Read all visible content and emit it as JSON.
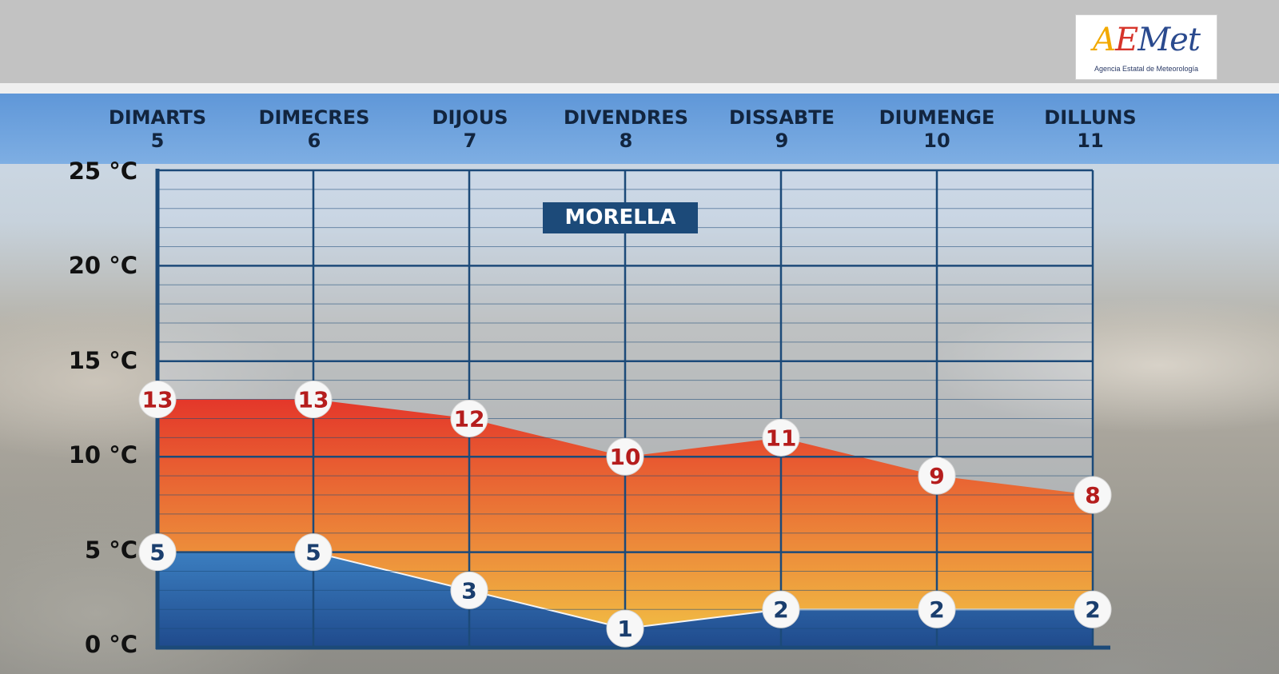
{
  "brand": {
    "logo_text": "AEMet",
    "logo_subtitle": "Agencia Estatal de Meteorología"
  },
  "station": "MORELLA",
  "days": [
    {
      "name": "DIMARTS",
      "date": "5"
    },
    {
      "name": "DIMECRES",
      "date": "6"
    },
    {
      "name": "DIJOUS",
      "date": "7"
    },
    {
      "name": "DIVENDRES",
      "date": "8"
    },
    {
      "name": "DISSABTE",
      "date": "9"
    },
    {
      "name": "DIUMENGE",
      "date": "10"
    },
    {
      "name": "DILLUNS",
      "date": "11"
    }
  ],
  "y_ticks": [
    "25 °C",
    "20 °C",
    "15 °C",
    "10 °C",
    "5 °C",
    "0 °C"
  ],
  "colors": {
    "max_top": "#e4372a",
    "max_bottom": "#f2c445",
    "min_top": "#3b7ec0",
    "min_bottom": "#1f4a8c",
    "grid": "#1c4a79",
    "max_label": "#b51d1d",
    "min_label": "#1a3e6e"
  },
  "chart_data": {
    "type": "area",
    "categories": [
      "DIMARTS 5",
      "DIMECRES 6",
      "DIJOUS 7",
      "DIVENDRES 8",
      "DISSABTE 9",
      "DIUMENGE 10",
      "DILLUNS 11"
    ],
    "series": [
      {
        "values": [
          13,
          13,
          12,
          10,
          11,
          9,
          8
        ]
      },
      {
        "values": [
          5,
          5,
          3,
          1,
          2,
          2,
          2
        ]
      }
    ],
    "unit": "°C",
    "ylim": [
      0,
      25
    ],
    "grid": true
  }
}
